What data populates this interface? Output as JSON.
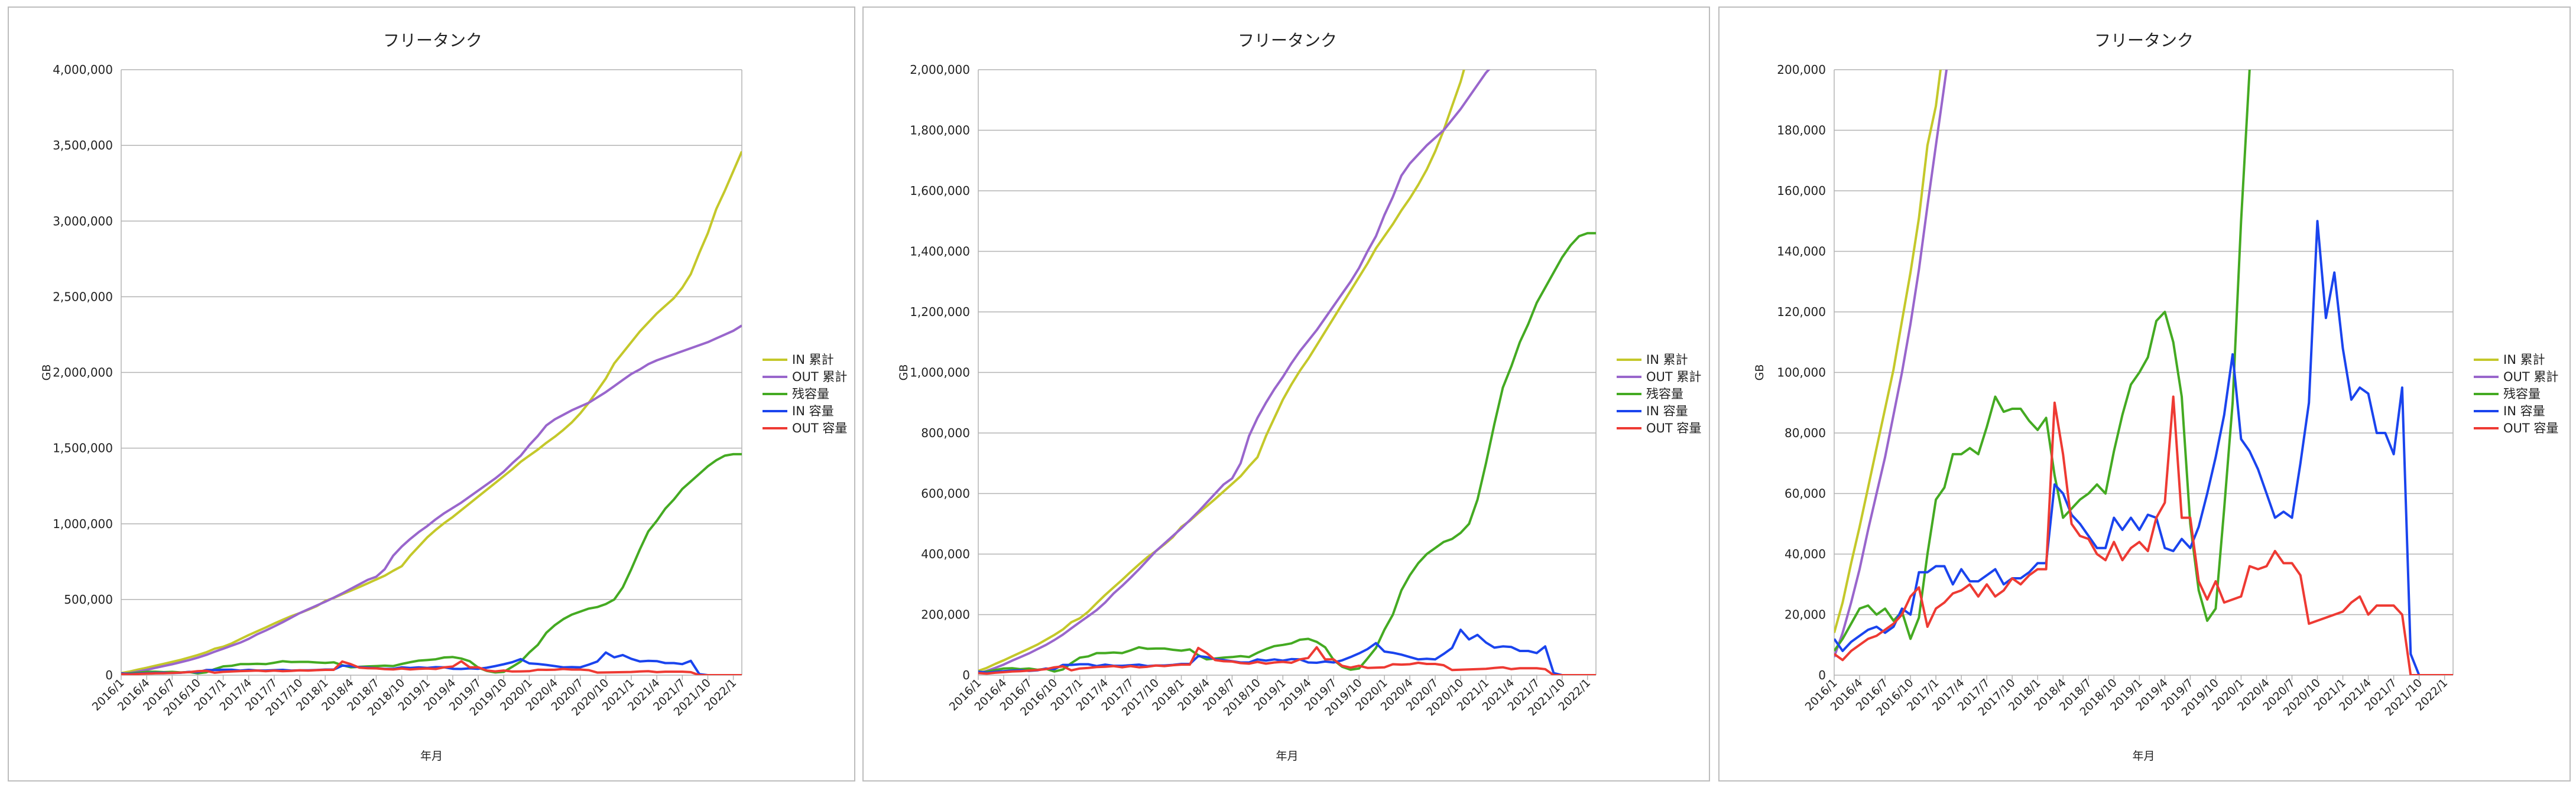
{
  "months": {
    "start_year": 2016,
    "start_month": 1,
    "count": 74
  },
  "series_colors": {
    "IN 累計": "#c4c82a",
    "OUT 累計": "#9966cc",
    "残容量": "#44aa22",
    "IN 容量": "#1a44ee",
    "OUT 容量": "#ee3a33"
  },
  "chart_data": [
    {
      "type": "line",
      "title": "フリータンク",
      "xlabel": "年月",
      "ylabel": "GB",
      "ylim": [
        0,
        4000000
      ],
      "yticks": [
        0,
        500000,
        1000000,
        1500000,
        2000000,
        2500000,
        3000000,
        3500000,
        4000000
      ],
      "ytick_labels": [
        "0",
        "500,000",
        "1,000,000",
        "1,500,000",
        "2,000,000",
        "2,500,000",
        "3,000,000",
        "3,500,000",
        "4,000,000"
      ],
      "xtick_labels": [
        "2016/1",
        "2016/4",
        "2016/7",
        "2016/10",
        "2017/1",
        "2017/4",
        "2017/7",
        "2017/10",
        "2018/1",
        "2018/4",
        "2018/7",
        "2018/10",
        "2019/1",
        "2019/4",
        "2019/7",
        "2019/10",
        "2020/1",
        "2020/4",
        "2020/7",
        "2020/10",
        "2021/1",
        "2021/4",
        "2021/7",
        "2021/10",
        "2022/1"
      ],
      "grid": true,
      "legend": "right",
      "series_ref": "common"
    },
    {
      "type": "line",
      "title": "フリータンク",
      "xlabel": "年月",
      "ylabel": "GB",
      "ylim": [
        0,
        2000000
      ],
      "yticks": [
        0,
        200000,
        400000,
        600000,
        800000,
        1000000,
        1200000,
        1400000,
        1600000,
        1800000,
        2000000
      ],
      "ytick_labels": [
        "0",
        "200,000",
        "400,000",
        "600,000",
        "800,000",
        "1,000,000",
        "1,200,000",
        "1,400,000",
        "1,600,000",
        "1,800,000",
        "2,000,000"
      ],
      "xtick_labels": [
        "2016/1",
        "2016/4",
        "2016/7",
        "2016/10",
        "2017/1",
        "2017/4",
        "2017/7",
        "2017/10",
        "2018/1",
        "2018/4",
        "2018/7",
        "2018/10",
        "2019/1",
        "2019/4",
        "2019/7",
        "2019/10",
        "2020/1",
        "2020/4",
        "2020/7",
        "2020/10",
        "2021/1",
        "2021/4",
        "2021/7",
        "2021/10",
        "2022/1"
      ],
      "grid": true,
      "legend": "right",
      "series_ref": "common"
    },
    {
      "type": "line",
      "title": "フリータンク",
      "xlabel": "年月",
      "ylabel": "GB",
      "ylim": [
        0,
        200000
      ],
      "yticks": [
        0,
        20000,
        40000,
        60000,
        80000,
        100000,
        120000,
        140000,
        160000,
        180000,
        200000
      ],
      "ytick_labels": [
        "0",
        "20,000",
        "40,000",
        "60,000",
        "80,000",
        "100,000",
        "120,000",
        "140,000",
        "160,000",
        "180,000",
        "200,000"
      ],
      "xtick_labels": [
        "2016/1",
        "2016/4",
        "2016/7",
        "2016/10",
        "2017/1",
        "2017/4",
        "2017/7",
        "2017/10",
        "2018/1",
        "2018/4",
        "2018/7",
        "2018/10",
        "2019/1",
        "2019/4",
        "2019/7",
        "2019/10",
        "2020/1",
        "2020/4",
        "2020/7",
        "2020/10",
        "2021/1",
        "2021/4",
        "2021/7",
        "2021/10",
        "2022/1"
      ],
      "grid": true,
      "legend": "right",
      "series_ref": "common"
    }
  ],
  "series": [
    {
      "name": "IN 累計",
      "values": [
        14000,
        24000,
        37000,
        49000,
        62000,
        75000,
        88000,
        101000,
        117000,
        133000,
        151000,
        175000,
        188000,
        210000,
        238000,
        265000,
        290000,
        315000,
        341000,
        366000,
        390000,
        410000,
        432000,
        456000,
        490000,
        510000,
        535000,
        558000,
        582000,
        607000,
        632000,
        657000,
        690000,
        720000,
        790000,
        850000,
        910000,
        960000,
        1005000,
        1045000,
        1090000,
        1135000,
        1180000,
        1225000,
        1270000,
        1315000,
        1360000,
        1410000,
        1450000,
        1490000,
        1535000,
        1575000,
        1620000,
        1670000,
        1730000,
        1800000,
        1880000,
        1960000,
        2060000,
        2130000,
        2200000,
        2270000,
        2330000,
        2390000,
        2440000,
        2490000,
        2560000,
        2650000,
        2790000,
        2920000,
        3080000,
        3200000,
        3330000,
        3460000
      ]
    },
    {
      "name": "OUT 累計",
      "values": [
        6000,
        14000,
        24000,
        35000,
        48000,
        60000,
        72000,
        86000,
        100000,
        116000,
        134000,
        155000,
        175000,
        195000,
        215000,
        240000,
        270000,
        295000,
        322000,
        350000,
        380000,
        410000,
        435000,
        460000,
        485000,
        512000,
        540000,
        570000,
        600000,
        630000,
        650000,
        700000,
        790000,
        850000,
        900000,
        945000,
        985000,
        1030000,
        1070000,
        1105000,
        1140000,
        1180000,
        1220000,
        1260000,
        1300000,
        1345000,
        1400000,
        1450000,
        1520000,
        1580000,
        1650000,
        1690000,
        1720000,
        1750000,
        1775000,
        1800000,
        1835000,
        1870000,
        1910000,
        1950000,
        1990000,
        2020000,
        2055000,
        2080000,
        2100000,
        2120000,
        2140000,
        2160000,
        2180000,
        2200000,
        2225000,
        2250000,
        2275000,
        2310000
      ]
    },
    {
      "name": "残容量",
      "values": [
        8000,
        12000,
        17000,
        22000,
        23000,
        20000,
        22000,
        18000,
        21000,
        12000,
        19000,
        40000,
        58000,
        62000,
        73000,
        73000,
        75000,
        73000,
        82000,
        92000,
        87000,
        88000,
        88000,
        84000,
        81000,
        85000,
        66000,
        52000,
        55000,
        58000,
        60000,
        63000,
        60000,
        74000,
        86000,
        96000,
        100000,
        105000,
        117000,
        120000,
        110000,
        92000,
        50000,
        28000,
        18000,
        22000,
        55000,
        90000,
        150000,
        200000,
        280000,
        330000,
        370000,
        400000,
        420000,
        440000,
        450000,
        470000,
        500000,
        580000,
        700000,
        830000,
        950000,
        1020000,
        1100000,
        1160000,
        1230000,
        1280000,
        1330000,
        1380000,
        1420000,
        1450000,
        1460000,
        1460000
      ]
    },
    {
      "name": "IN 容量",
      "values": [
        12000,
        8000,
        11000,
        13000,
        15000,
        16000,
        14000,
        16000,
        22000,
        20000,
        34000,
        34000,
        36000,
        36000,
        30000,
        35000,
        31000,
        31000,
        33000,
        35000,
        30000,
        32000,
        32000,
        34000,
        37000,
        37000,
        63000,
        60000,
        53000,
        50000,
        46000,
        42000,
        42000,
        52000,
        48000,
        52000,
        48000,
        53000,
        52000,
        42000,
        41000,
        45000,
        42000,
        49000,
        60000,
        72000,
        86000,
        106000,
        78000,
        74000,
        68000,
        60000,
        52000,
        54000,
        52000,
        70000,
        90000,
        150000,
        118000,
        133000,
        108000,
        91000,
        95000,
        93000,
        80000,
        80000,
        73000,
        95000,
        7000,
        0,
        0,
        0,
        0,
        0
      ]
    },
    {
      "name": "OUT 容量",
      "values": [
        7000,
        5000,
        8000,
        10000,
        12000,
        13000,
        15000,
        17000,
        20000,
        26000,
        29000,
        16000,
        22000,
        24000,
        27000,
        28000,
        30000,
        26000,
        30000,
        26000,
        28000,
        32000,
        30000,
        33000,
        35000,
        35000,
        90000,
        73000,
        50000,
        46000,
        45000,
        40000,
        38000,
        44000,
        38000,
        42000,
        44000,
        41000,
        52000,
        57000,
        92000,
        52000,
        52000,
        31000,
        25000,
        31000,
        24000,
        25000,
        26000,
        36000,
        35000,
        36000,
        41000,
        37000,
        37000,
        33000,
        17000,
        18000,
        19000,
        20000,
        21000,
        24000,
        26000,
        20000,
        23000,
        23000,
        23000,
        20000,
        0,
        0,
        0,
        0,
        0,
        0
      ]
    }
  ]
}
